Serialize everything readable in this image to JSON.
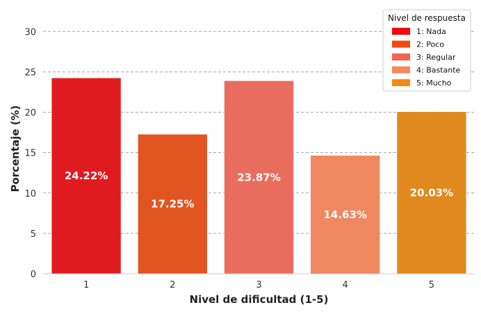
{
  "chart_data": {
    "type": "bar",
    "xlabel": "Nivel de dificultad (1-5)",
    "ylabel": "Porcentaje (%)",
    "categories": [
      "1",
      "2",
      "3",
      "4",
      "5"
    ],
    "values": [
      24.22,
      17.25,
      23.87,
      14.63,
      20.03
    ],
    "value_labels": [
      "24.22%",
      "17.25%",
      "23.87%",
      "14.63%",
      "20.03%"
    ],
    "colors": [
      "#e01b1f",
      "#e05520",
      "#e96d5e",
      "#ef8861",
      "#e0891f"
    ],
    "ylim": [
      0,
      32
    ],
    "yticks": [
      0,
      5,
      10,
      15,
      20,
      25,
      30
    ],
    "grid": true,
    "legend": {
      "title": "Nivel de respuesta",
      "placement": "top-right",
      "entries": [
        {
          "label": "1: Nada",
          "color": "#f00a0a"
        },
        {
          "label": "2: Poco",
          "color": "#f04a0f"
        },
        {
          "label": "3: Regular",
          "color": "#f5644f"
        },
        {
          "label": "4: Bastante",
          "color": "#f58a5a"
        },
        {
          "label": "5: Mucho",
          "color": "#f5890f"
        }
      ]
    }
  }
}
